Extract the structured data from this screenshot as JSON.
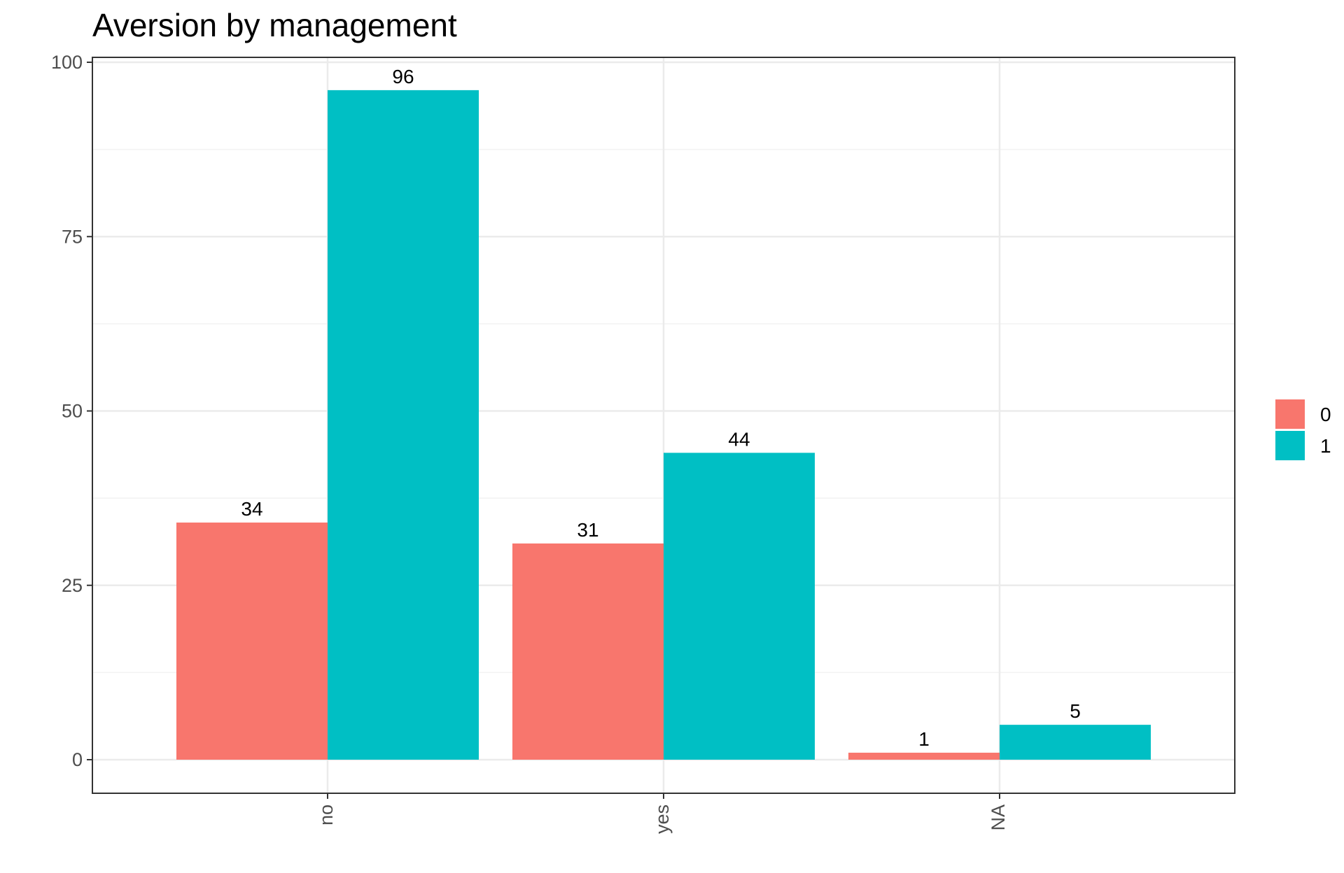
{
  "chart_data": {
    "type": "bar",
    "title": "Aversion by management",
    "xlabel": "",
    "ylabel": "",
    "categories": [
      "no",
      "yes",
      "NA"
    ],
    "series": [
      {
        "name": "0",
        "values": [
          34,
          31,
          1
        ],
        "color": "#F8766D"
      },
      {
        "name": "1",
        "values": [
          96,
          44,
          5
        ],
        "color": "#00BFC4"
      }
    ],
    "ylim": [
      0,
      100
    ],
    "yticks": [
      "0",
      "25",
      "50",
      "75",
      "100"
    ],
    "grid": true,
    "legend_position": "right",
    "x_tick_rotation": "vertical"
  }
}
